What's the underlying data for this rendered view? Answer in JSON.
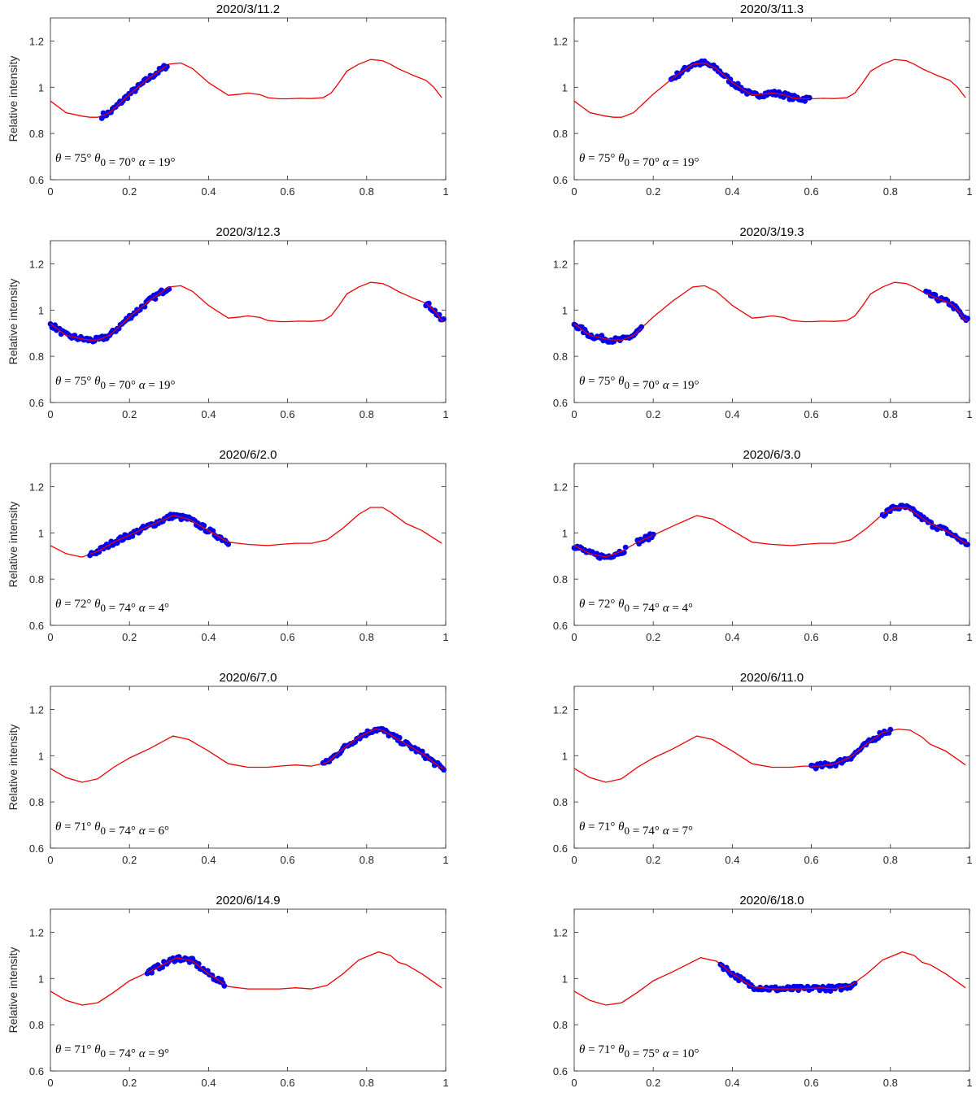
{
  "figure": {
    "ylabel": "Relative intensity",
    "colors": {
      "model": "#ee0000",
      "observations": "#0000ee",
      "axes": "#262626"
    },
    "xlim": [
      0,
      1
    ],
    "ylim": [
      0.6,
      1.3
    ],
    "xticks": [
      0,
      0.2,
      0.4,
      0.6,
      0.8,
      1
    ],
    "yticks": [
      0.6,
      0.8,
      1,
      1.2
    ]
  },
  "chart_data": [
    {
      "type": "scatter",
      "title": "2020/3/11.2",
      "xlabel": "",
      "ylabel": "Relative intensity",
      "xlim": [
        0,
        1
      ],
      "ylim": [
        0.6,
        1.3
      ],
      "grid": false,
      "annotation": {
        "theta": "75°",
        "theta0": "70°",
        "alpha": "19°"
      },
      "model_curve": {
        "name": "",
        "x": [
          0.0,
          0.04,
          0.08,
          0.1,
          0.12,
          0.15,
          0.2,
          0.25,
          0.3,
          0.33,
          0.36,
          0.4,
          0.45,
          0.48,
          0.5,
          0.53,
          0.55,
          0.58,
          0.6,
          0.63,
          0.66,
          0.69,
          0.71,
          0.73,
          0.75,
          0.78,
          0.81,
          0.84,
          0.86,
          0.88,
          0.9,
          0.92,
          0.95,
          0.97,
          0.99
        ],
        "y": [
          0.94,
          0.89,
          0.875,
          0.87,
          0.87,
          0.89,
          0.97,
          1.04,
          1.1,
          1.105,
          1.08,
          1.02,
          0.965,
          0.97,
          0.975,
          0.968,
          0.955,
          0.95,
          0.95,
          0.952,
          0.951,
          0.955,
          0.975,
          1.02,
          1.07,
          1.1,
          1.12,
          1.115,
          1.1,
          1.08,
          1.065,
          1.05,
          1.03,
          1.0,
          0.955
        ]
      },
      "observations": {
        "ranges": [
          [
            0.13,
            0.295
          ]
        ]
      }
    },
    {
      "type": "scatter",
      "title": "2020/3/11.3",
      "xlabel": "",
      "ylabel": "",
      "xlim": [
        0,
        1
      ],
      "ylim": [
        0.6,
        1.3
      ],
      "grid": false,
      "annotation": {
        "theta": "75°",
        "theta0": "70°",
        "alpha": "19°"
      },
      "model_curve": {
        "name": "",
        "x": [
          0.0,
          0.04,
          0.08,
          0.1,
          0.12,
          0.15,
          0.2,
          0.25,
          0.3,
          0.33,
          0.36,
          0.4,
          0.45,
          0.48,
          0.5,
          0.53,
          0.55,
          0.58,
          0.6,
          0.63,
          0.66,
          0.69,
          0.71,
          0.73,
          0.75,
          0.78,
          0.81,
          0.84,
          0.86,
          0.88,
          0.9,
          0.92,
          0.95,
          0.97,
          0.99
        ],
        "y": [
          0.94,
          0.89,
          0.875,
          0.87,
          0.87,
          0.89,
          0.97,
          1.04,
          1.1,
          1.105,
          1.08,
          1.02,
          0.965,
          0.97,
          0.975,
          0.968,
          0.955,
          0.95,
          0.95,
          0.952,
          0.951,
          0.955,
          0.975,
          1.02,
          1.07,
          1.1,
          1.12,
          1.115,
          1.1,
          1.08,
          1.065,
          1.05,
          1.03,
          1.0,
          0.955
        ]
      },
      "observations": {
        "ranges": [
          [
            0.245,
            0.595
          ]
        ]
      }
    },
    {
      "type": "scatter",
      "title": "2020/3/12.3",
      "xlabel": "",
      "ylabel": "Relative intensity",
      "xlim": [
        0,
        1
      ],
      "ylim": [
        0.6,
        1.3
      ],
      "grid": false,
      "annotation": {
        "theta": "75°",
        "theta0": "70°",
        "alpha": "19°"
      },
      "model_curve": {
        "name": "",
        "x": [
          0.0,
          0.04,
          0.08,
          0.1,
          0.12,
          0.15,
          0.2,
          0.25,
          0.3,
          0.33,
          0.36,
          0.4,
          0.45,
          0.48,
          0.5,
          0.53,
          0.55,
          0.58,
          0.6,
          0.63,
          0.66,
          0.69,
          0.71,
          0.73,
          0.75,
          0.78,
          0.81,
          0.84,
          0.86,
          0.88,
          0.9,
          0.92,
          0.95,
          0.97,
          0.99
        ],
        "y": [
          0.94,
          0.89,
          0.875,
          0.87,
          0.87,
          0.89,
          0.97,
          1.04,
          1.1,
          1.105,
          1.08,
          1.02,
          0.965,
          0.97,
          0.975,
          0.968,
          0.955,
          0.95,
          0.95,
          0.952,
          0.951,
          0.955,
          0.975,
          1.02,
          1.07,
          1.1,
          1.12,
          1.115,
          1.1,
          1.08,
          1.065,
          1.05,
          1.03,
          1.0,
          0.955
        ]
      },
      "observations": {
        "ranges": [
          [
            0.0,
            0.3
          ],
          [
            0.95,
            0.995
          ]
        ]
      }
    },
    {
      "type": "scatter",
      "title": "2020/3/19.3",
      "xlabel": "",
      "ylabel": "",
      "xlim": [
        0,
        1
      ],
      "ylim": [
        0.6,
        1.3
      ],
      "grid": false,
      "annotation": {
        "theta": "75°",
        "theta0": "70°",
        "alpha": "19°"
      },
      "model_curve": {
        "name": "",
        "x": [
          0.0,
          0.04,
          0.08,
          0.1,
          0.12,
          0.15,
          0.2,
          0.25,
          0.3,
          0.33,
          0.36,
          0.4,
          0.45,
          0.48,
          0.5,
          0.53,
          0.55,
          0.58,
          0.6,
          0.63,
          0.66,
          0.69,
          0.71,
          0.73,
          0.75,
          0.78,
          0.81,
          0.84,
          0.86,
          0.88,
          0.9,
          0.92,
          0.95,
          0.97,
          0.99
        ],
        "y": [
          0.94,
          0.89,
          0.875,
          0.87,
          0.87,
          0.89,
          0.97,
          1.04,
          1.1,
          1.105,
          1.08,
          1.02,
          0.965,
          0.97,
          0.975,
          0.968,
          0.955,
          0.95,
          0.95,
          0.952,
          0.951,
          0.955,
          0.975,
          1.02,
          1.07,
          1.1,
          1.12,
          1.115,
          1.1,
          1.08,
          1.065,
          1.05,
          1.03,
          1.0,
          0.955
        ]
      },
      "observations": {
        "ranges": [
          [
            0.0,
            0.17
          ],
          [
            0.89,
            0.995
          ]
        ]
      }
    },
    {
      "type": "scatter",
      "title": "2020/6/2.0",
      "xlabel": "",
      "ylabel": "Relative intensity",
      "xlim": [
        0,
        1
      ],
      "ylim": [
        0.6,
        1.3
      ],
      "grid": false,
      "annotation": {
        "theta": "72°",
        "theta0": "74°",
        "alpha": "4°"
      },
      "model_curve": {
        "name": "",
        "x": [
          0.0,
          0.04,
          0.08,
          0.12,
          0.16,
          0.2,
          0.25,
          0.31,
          0.35,
          0.4,
          0.45,
          0.5,
          0.55,
          0.58,
          0.62,
          0.66,
          0.7,
          0.74,
          0.78,
          0.81,
          0.84,
          0.86,
          0.9,
          0.94,
          0.99
        ],
        "y": [
          0.945,
          0.91,
          0.895,
          0.92,
          0.96,
          0.99,
          1.03,
          1.075,
          1.06,
          1.01,
          0.96,
          0.95,
          0.945,
          0.95,
          0.955,
          0.955,
          0.97,
          1.02,
          1.08,
          1.11,
          1.11,
          1.09,
          1.04,
          1.01,
          0.955
        ]
      },
      "observations": {
        "ranges": [
          [
            0.1,
            0.45
          ]
        ]
      }
    },
    {
      "type": "scatter",
      "title": "2020/6/3.0",
      "xlabel": "",
      "ylabel": "",
      "xlim": [
        0,
        1
      ],
      "ylim": [
        0.6,
        1.3
      ],
      "grid": false,
      "annotation": {
        "theta": "72°",
        "theta0": "74°",
        "alpha": "4°"
      },
      "model_curve": {
        "name": "",
        "x": [
          0.0,
          0.04,
          0.08,
          0.12,
          0.16,
          0.2,
          0.25,
          0.31,
          0.35,
          0.4,
          0.45,
          0.5,
          0.55,
          0.58,
          0.62,
          0.66,
          0.7,
          0.74,
          0.78,
          0.81,
          0.84,
          0.86,
          0.9,
          0.94,
          0.99
        ],
        "y": [
          0.945,
          0.91,
          0.895,
          0.92,
          0.96,
          0.99,
          1.03,
          1.075,
          1.06,
          1.01,
          0.96,
          0.95,
          0.945,
          0.95,
          0.955,
          0.955,
          0.97,
          1.02,
          1.08,
          1.11,
          1.11,
          1.09,
          1.04,
          1.01,
          0.955
        ]
      },
      "observations": {
        "ranges": [
          [
            0.0,
            0.13
          ],
          [
            0.16,
            0.2
          ],
          [
            0.78,
            0.995
          ]
        ]
      }
    },
    {
      "type": "scatter",
      "title": "2020/6/7.0",
      "xlabel": "",
      "ylabel": "Relative intensity",
      "xlim": [
        0,
        1
      ],
      "ylim": [
        0.6,
        1.3
      ],
      "grid": false,
      "annotation": {
        "theta": "71°",
        "theta0": "74°",
        "alpha": "6°"
      },
      "model_curve": {
        "name": "",
        "x": [
          0.0,
          0.04,
          0.08,
          0.12,
          0.16,
          0.2,
          0.25,
          0.31,
          0.35,
          0.4,
          0.45,
          0.5,
          0.55,
          0.58,
          0.62,
          0.66,
          0.7,
          0.74,
          0.78,
          0.82,
          0.84,
          0.86,
          0.9,
          0.94,
          0.99
        ],
        "y": [
          0.945,
          0.905,
          0.885,
          0.9,
          0.95,
          0.99,
          1.03,
          1.085,
          1.07,
          1.02,
          0.965,
          0.95,
          0.95,
          0.955,
          0.96,
          0.955,
          0.97,
          1.03,
          1.08,
          1.115,
          1.11,
          1.09,
          1.05,
          1.01,
          0.945
        ]
      },
      "observations": {
        "ranges": [
          [
            0.69,
            0.995
          ]
        ]
      }
    },
    {
      "type": "scatter",
      "title": "2020/6/11.0",
      "xlabel": "",
      "ylabel": "",
      "xlim": [
        0,
        1
      ],
      "ylim": [
        0.6,
        1.3
      ],
      "grid": false,
      "annotation": {
        "theta": "71°",
        "theta0": "74°",
        "alpha": "7°"
      },
      "model_curve": {
        "name": "",
        "x": [
          0.0,
          0.04,
          0.08,
          0.12,
          0.16,
          0.2,
          0.25,
          0.31,
          0.35,
          0.4,
          0.45,
          0.5,
          0.55,
          0.58,
          0.62,
          0.66,
          0.7,
          0.74,
          0.78,
          0.82,
          0.85,
          0.88,
          0.9,
          0.94,
          0.99
        ],
        "y": [
          0.945,
          0.905,
          0.885,
          0.9,
          0.95,
          0.99,
          1.03,
          1.085,
          1.07,
          1.02,
          0.965,
          0.95,
          0.95,
          0.955,
          0.955,
          0.965,
          0.995,
          1.05,
          1.1,
          1.115,
          1.11,
          1.08,
          1.05,
          1.02,
          0.96
        ]
      },
      "observations": {
        "ranges": [
          [
            0.6,
            0.8
          ]
        ]
      }
    },
    {
      "type": "scatter",
      "title": "2020/6/14.9",
      "xlabel": "",
      "ylabel": "Relative intensity",
      "xlim": [
        0,
        1
      ],
      "ylim": [
        0.6,
        1.3
      ],
      "grid": false,
      "annotation": {
        "theta": "71°",
        "theta0": "74°",
        "alpha": "9°"
      },
      "model_curve": {
        "name": "",
        "x": [
          0.0,
          0.04,
          0.08,
          0.12,
          0.16,
          0.2,
          0.25,
          0.32,
          0.36,
          0.4,
          0.45,
          0.5,
          0.55,
          0.58,
          0.62,
          0.66,
          0.7,
          0.74,
          0.78,
          0.83,
          0.86,
          0.88,
          0.9,
          0.94,
          0.99
        ],
        "y": [
          0.945,
          0.905,
          0.885,
          0.895,
          0.94,
          0.99,
          1.03,
          1.09,
          1.075,
          1.02,
          0.965,
          0.955,
          0.955,
          0.955,
          0.96,
          0.955,
          0.97,
          1.02,
          1.08,
          1.115,
          1.1,
          1.07,
          1.06,
          1.02,
          0.96
        ]
      },
      "observations": {
        "ranges": [
          [
            0.245,
            0.44
          ]
        ]
      }
    },
    {
      "type": "scatter",
      "title": "2020/6/18.0",
      "xlabel": "",
      "ylabel": "",
      "xlim": [
        0,
        1
      ],
      "ylim": [
        0.6,
        1.3
      ],
      "grid": false,
      "annotation": {
        "theta": "71°",
        "theta0": "75°",
        "alpha": "10°"
      },
      "model_curve": {
        "name": "",
        "x": [
          0.0,
          0.04,
          0.08,
          0.12,
          0.16,
          0.2,
          0.25,
          0.32,
          0.36,
          0.4,
          0.45,
          0.5,
          0.55,
          0.58,
          0.62,
          0.66,
          0.7,
          0.74,
          0.78,
          0.83,
          0.86,
          0.88,
          0.9,
          0.94,
          0.99
        ],
        "y": [
          0.945,
          0.905,
          0.885,
          0.895,
          0.94,
          0.99,
          1.03,
          1.09,
          1.075,
          1.02,
          0.965,
          0.955,
          0.955,
          0.955,
          0.96,
          0.955,
          0.97,
          1.02,
          1.08,
          1.115,
          1.1,
          1.07,
          1.06,
          1.02,
          0.96
        ]
      },
      "observations": {
        "ranges": [
          [
            0.37,
            0.71
          ]
        ]
      }
    }
  ]
}
